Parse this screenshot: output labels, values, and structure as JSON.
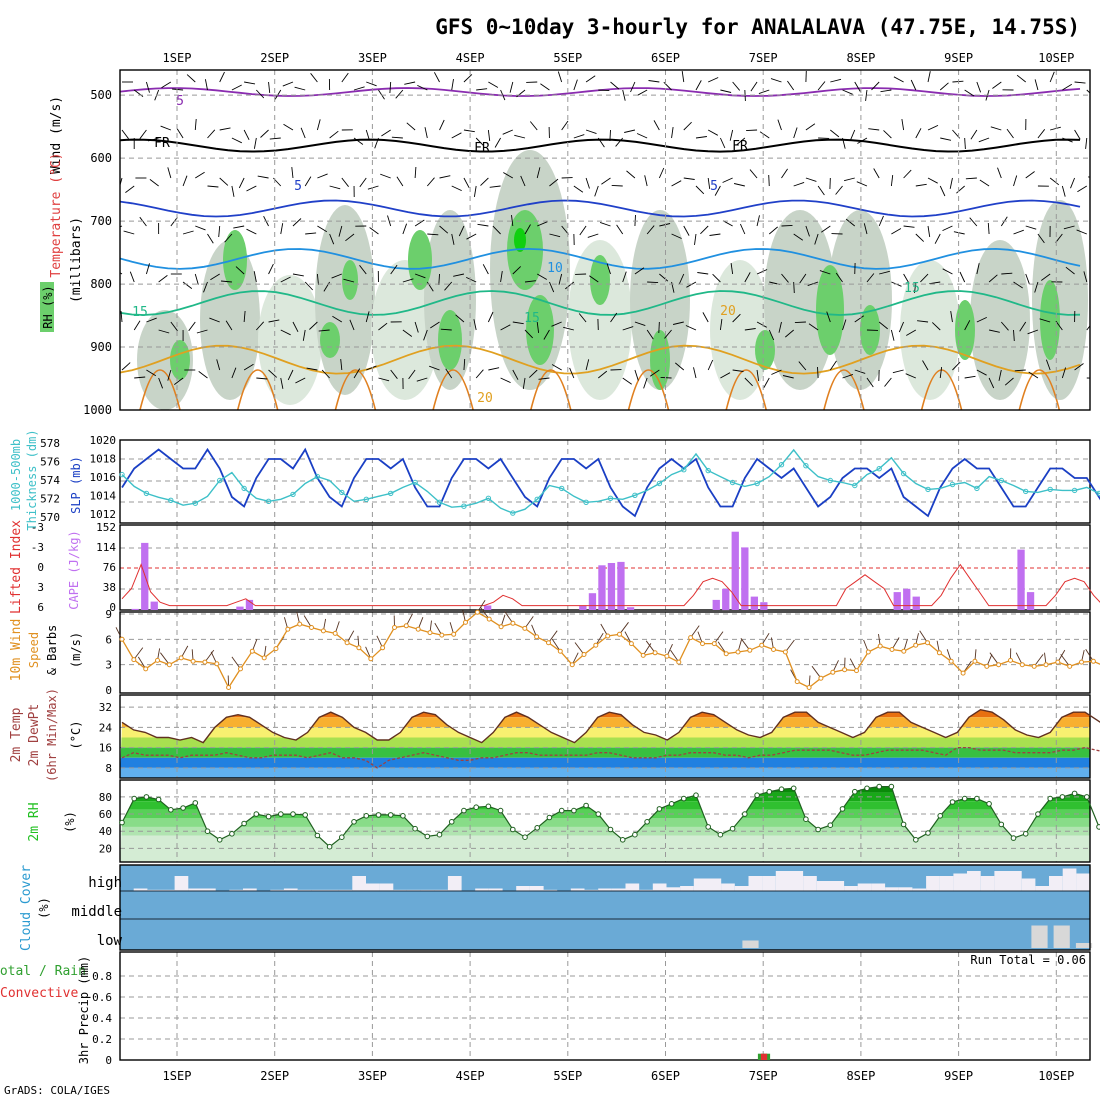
{
  "title": "GFS 0~10day 3-hourly for ANALALAVA (47.75E, 14.75S)",
  "footer": "GrADS: COLA/IGES",
  "run_total": "Run Total = 0.06",
  "colors": {
    "rh_green": "#6ccf6c",
    "rh_dark": "#c8d4c8",
    "slp": "#1a3fc4",
    "thickness": "#3ec0c8",
    "cape": "#c070f0",
    "lifted_index": "#e03030",
    "wind": "#e09020",
    "cloud_bg": "#6aaad6",
    "cloud_fill": "#f2eef6",
    "rh2m": "#22c022",
    "dewpt": "#a04040"
  },
  "labels": {
    "p1": [
      "Wind (m/s)",
      "Temperature (°C)",
      "RH (%)",
      "(millibars)"
    ],
    "p2": [
      "1000-500mb",
      "Thickness (dm)",
      "SLP (mb)"
    ],
    "p3": [
      "Lifted Index",
      "CAPE (J/kg)"
    ],
    "p4": [
      "10m Wind",
      "Speed",
      "& Barbs",
      "(m/s)"
    ],
    "p5": [
      "2m Temp",
      "2m DewPt",
      "(6hr Min/Max)",
      "(°C)"
    ],
    "p6": [
      "2m RH",
      "(%)"
    ],
    "p7": [
      "Cloud Cover",
      "(%)"
    ],
    "p8": [
      "Total / Rain",
      "Convective",
      "3hr Precip (mm)"
    ]
  },
  "contour_labels": [
    "5",
    "FR",
    "FR",
    "FR",
    "5",
    "5",
    "10",
    "15",
    "15",
    "15",
    "20",
    "20"
  ],
  "chart_data": {
    "type": "line",
    "dates": [
      "1SEP",
      "2SEP",
      "3SEP",
      "4SEP",
      "5SEP",
      "6SEP",
      "7SEP",
      "8SEP",
      "9SEP",
      "10SEP"
    ],
    "steps_per_day": 8,
    "panels": [
      {
        "name": "upper_air",
        "yticks": [
          "500",
          "600",
          "700",
          "800",
          "900",
          "1000"
        ],
        "ylim": [
          1000,
          460
        ],
        "isotherms": [
          {
            "label": "-5",
            "level": 495
          },
          {
            "label": "FR",
            "level": 580
          },
          {
            "label": "5",
            "level": 680
          },
          {
            "label": "10",
            "level": 760
          },
          {
            "label": "15",
            "level": 830
          },
          {
            "label": "20",
            "level": 920
          }
        ]
      },
      {
        "name": "slp_thickness",
        "yticks_left": [
          "578",
          "576",
          "574",
          "572",
          "570"
        ],
        "yticks_right": [
          "1020",
          "1018",
          "1016",
          "1014",
          "1012"
        ],
        "slp_mb": [
          1015,
          1017,
          1018,
          1019,
          1018,
          1017,
          1017,
          1019,
          1017,
          1014,
          1013,
          1016,
          1018,
          1018,
          1017,
          1019,
          1016,
          1014,
          1013,
          1016,
          1018,
          1018,
          1017,
          1018,
          1015,
          1013,
          1013,
          1016,
          1018,
          1018,
          1017,
          1018,
          1016,
          1014,
          1013,
          1016,
          1018,
          1018,
          1017,
          1018,
          1015,
          1013,
          1012,
          1015,
          1017,
          1018,
          1017,
          1018,
          1015,
          1013,
          1013,
          1016,
          1018,
          1017,
          1016,
          1017,
          1015,
          1013,
          1014,
          1016,
          1017,
          1017,
          1016,
          1017,
          1014,
          1013,
          1012,
          1015,
          1017,
          1018,
          1017,
          1017,
          1015,
          1013,
          1013,
          1015,
          1017,
          1017,
          1016,
          1016,
          1014,
          1012,
          1012,
          1015,
          1017,
          1017,
          1017,
          1018,
          1018
        ],
        "thickness_dm": [
          574.8,
          573.6,
          572.9,
          572.5,
          572.2,
          571.7,
          571.9,
          572.6,
          574.2,
          575.0,
          573.4,
          572.4,
          572.1,
          572.3,
          572.8,
          573.9,
          574.6,
          574.2,
          573.0,
          572.1,
          572.3,
          572.6,
          572.9,
          573.5,
          574.0,
          573.1,
          572.0,
          571.5,
          571.6,
          571.9,
          572.4,
          571.4,
          570.9,
          571.3,
          572.3,
          573.7,
          573.4,
          572.6,
          572.0,
          572.1,
          572.4,
          572.3,
          572.7,
          573.2,
          573.9,
          574.8,
          575.3,
          576.9,
          575.2,
          574.6,
          574.0,
          573.6,
          573.9,
          574.6,
          575.8,
          577.3,
          575.7,
          574.6,
          574.2,
          574.0,
          573.7,
          574.8,
          575.4,
          576.5,
          574.9,
          573.9,
          573.3,
          573.4,
          573.8,
          574.0,
          573.4,
          574.6,
          574.2,
          573.7,
          573.1,
          573.0,
          573.3,
          573.2,
          573.2,
          573.5,
          572.9,
          572.8,
          572.6,
          572.9,
          573.3,
          572.5,
          572.1,
          573.1,
          573.6
        ]
      },
      {
        "name": "cape_li",
        "yticks_left": [
          "-3",
          "-3",
          "0",
          "3",
          "6"
        ],
        "yticks_right": [
          "152",
          "114",
          "76",
          "38",
          "0"
        ],
        "cape": [
          0,
          2,
          120,
          15,
          0,
          0,
          0,
          0,
          0,
          0,
          0,
          0,
          6,
          18,
          0,
          0,
          0,
          0,
          0,
          0,
          0,
          0,
          0,
          0,
          0,
          0,
          0,
          0,
          0,
          0,
          0,
          0,
          0,
          0,
          0,
          0,
          0,
          0,
          8,
          0,
          0,
          0,
          0,
          0,
          0,
          0,
          0,
          0,
          8,
          30,
          80,
          84,
          86,
          5,
          0,
          0,
          0,
          0,
          0,
          0,
          0,
          0,
          18,
          38,
          140,
          112,
          24,
          14,
          0,
          0,
          0,
          0,
          0,
          0,
          0,
          0,
          0,
          0,
          0,
          0,
          0,
          32,
          38,
          24,
          0,
          0,
          0,
          0,
          0,
          0,
          0,
          0,
          0,
          0,
          108,
          32,
          0,
          0,
          0,
          0,
          0,
          0,
          0,
          0,
          0,
          0,
          0,
          12,
          74,
          74,
          0,
          0,
          0,
          0,
          0,
          0,
          0,
          0,
          0,
          0
        ],
        "lifted_index": [
          4.5,
          3.0,
          -0.5,
          3.5,
          5.0,
          5.5,
          5.5,
          5.5,
          5.5,
          5.5,
          5.5,
          5.5,
          5.0,
          4.5,
          5.5,
          5.5,
          5.5,
          5.5,
          5.5,
          5.5,
          5.5,
          5.5,
          5.5,
          5.5,
          5.5,
          5.5,
          5.5,
          5.5,
          5.5,
          5.5,
          5.5,
          5.5,
          5.5,
          5.5,
          5.5,
          5.5,
          5.5,
          5.5,
          5.5,
          5.0,
          4.0,
          4.5,
          5.5,
          5.5,
          5.5,
          5.5,
          5.5,
          5.5,
          5.5,
          5.5,
          5.5,
          5.5,
          5.5,
          5.5,
          5.5,
          5.5,
          5.5,
          5.5,
          5.5,
          5.5,
          4.0,
          2.0,
          1.5,
          2.0,
          3.5,
          5.5,
          5.5,
          5.5,
          5.5,
          5.5,
          5.5,
          5.5,
          5.5,
          5.5,
          5.5,
          5.5,
          3.0,
          2.0,
          1.0,
          2.0,
          3.0,
          5.5,
          5.5,
          5.5,
          5.5,
          5.5,
          4.0,
          1.5,
          -0.5,
          1.5,
          3.5,
          5.5,
          5.5,
          5.5,
          5.5,
          5.5,
          5.5,
          5.5,
          4.0,
          2.0,
          1.5,
          2.0,
          4.0,
          5.5,
          5.5,
          5.5,
          5.5,
          5.5,
          5.5,
          5.5,
          5.5,
          5.5,
          5.5,
          5.5,
          5.5
        ]
      },
      {
        "name": "wind10m",
        "yticks": [
          "9",
          "6",
          "3",
          "0"
        ],
        "speed": [
          6.0,
          3.6,
          2.5,
          3.5,
          3.0,
          3.8,
          3.4,
          3.3,
          3.1,
          0.3,
          2.5,
          4.6,
          3.8,
          4.9,
          7.2,
          7.8,
          7.4,
          7.0,
          6.7,
          5.6,
          5.0,
          3.7,
          5.0,
          7.4,
          7.6,
          7.2,
          6.8,
          6.5,
          6.6,
          8.0,
          9.2,
          8.4,
          7.5,
          7.9,
          7.3,
          6.3,
          5.6,
          4.6,
          3.0,
          4.2,
          5.3,
          6.4,
          6.6,
          5.5,
          4.1,
          4.4,
          4.0,
          3.3,
          6.2,
          5.5,
          5.5,
          4.3,
          4.5,
          4.7,
          5.3,
          4.8,
          4.5,
          1.0,
          0.3,
          1.4,
          2.1,
          2.4,
          2.3,
          4.5,
          5.2,
          4.8,
          4.6,
          5.3,
          5.6,
          4.4,
          3.4,
          2.0,
          3.4,
          2.8,
          3.0,
          3.5,
          3.0,
          2.8,
          3.0,
          3.3,
          2.8,
          3.3,
          3.4,
          2.8,
          2.4,
          2.0,
          2.5,
          3.5,
          2.7,
          2.5,
          3.8,
          3.7,
          2.0,
          5.0,
          6.0,
          7.5,
          6.8,
          4.5,
          5.0,
          5.3,
          5.2,
          4.2
        ]
      },
      {
        "name": "temp2m",
        "yticks": [
          "32",
          "24",
          "16",
          "8"
        ],
        "temp": [
          26,
          23,
          22,
          20,
          20,
          19,
          20,
          18,
          24,
          28,
          29,
          28,
          25,
          22,
          20,
          19,
          22,
          28,
          30,
          28,
          24,
          22,
          19,
          19,
          22,
          28,
          30,
          29,
          25,
          22,
          20,
          18,
          22,
          28,
          30,
          28,
          25,
          22,
          20,
          18,
          22,
          28,
          30,
          29,
          25,
          22,
          21,
          19,
          22,
          28,
          30,
          29,
          26,
          23,
          21,
          20,
          22,
          28,
          30,
          30,
          26,
          24,
          22,
          20,
          22,
          28,
          30,
          30,
          26,
          24,
          22,
          20,
          22,
          28,
          31,
          30,
          27,
          23,
          21,
          20,
          22,
          28,
          30,
          30,
          27,
          24,
          22,
          19,
          24,
          30,
          33,
          29,
          25,
          22,
          20,
          19,
          26
        ],
        "dewpt": [
          12,
          14,
          13,
          13,
          13,
          12,
          13,
          13,
          13,
          14,
          13,
          12,
          12,
          13,
          13,
          13,
          12,
          13,
          14,
          12,
          12,
          11,
          8,
          11,
          12,
          13,
          14,
          13,
          12,
          11,
          11,
          12,
          12,
          13,
          14,
          14,
          13,
          13,
          13,
          13,
          13,
          14,
          14,
          13,
          12,
          12,
          12,
          13,
          13,
          14,
          14,
          14,
          13,
          13,
          12,
          13,
          13,
          14,
          15,
          15,
          15,
          15,
          14,
          13,
          13,
          14,
          15,
          15,
          15,
          15,
          14,
          13,
          16,
          16,
          15,
          15,
          15,
          14,
          14,
          14,
          14,
          15,
          15,
          16,
          15,
          14,
          12,
          9,
          5,
          8,
          10,
          12,
          14,
          13,
          10,
          9,
          10
        ]
      },
      {
        "name": "rh2m",
        "yticks": [
          "80",
          "60",
          "40",
          "20"
        ],
        "rh": [
          50,
          78,
          80,
          77,
          65,
          67,
          73,
          40,
          30,
          37,
          49,
          60,
          57,
          60,
          60,
          59,
          35,
          22,
          33,
          51,
          58,
          59,
          59,
          58,
          43,
          34,
          36,
          51,
          64,
          68,
          69,
          64,
          42,
          33,
          44,
          56,
          64,
          64,
          70,
          60,
          42,
          30,
          36,
          51,
          66,
          72,
          78,
          82,
          45,
          36,
          43,
          60,
          82,
          86,
          89,
          90,
          54,
          42,
          47,
          66,
          86,
          90,
          92,
          92,
          48,
          30,
          38,
          58,
          74,
          78,
          78,
          72,
          48,
          32,
          37,
          60,
          78,
          80,
          84,
          80,
          45,
          18,
          25,
          44,
          62,
          67,
          36
        ]
      },
      {
        "name": "cloud_cover",
        "levels": [
          "high",
          "middle",
          "low"
        ],
        "high": [
          0,
          10,
          5,
          5,
          60,
          10,
          10,
          0,
          5,
          10,
          0,
          5,
          10,
          5,
          5,
          5,
          5,
          60,
          30,
          30,
          5,
          5,
          5,
          5,
          60,
          0,
          10,
          10,
          0,
          20,
          20,
          5,
          0,
          10,
          5,
          10,
          10,
          30,
          5,
          30,
          15,
          20,
          50,
          50,
          30,
          20,
          60,
          60,
          80,
          80,
          60,
          40,
          40,
          20,
          30,
          30,
          15,
          15,
          10,
          60,
          60,
          70,
          80,
          60,
          80,
          80,
          50,
          20,
          60,
          90,
          70
        ],
        "middle": [],
        "low": [
          0,
          0,
          0,
          0,
          0,
          0,
          0,
          0,
          0,
          0,
          0,
          0,
          0,
          0,
          0,
          0,
          0,
          0,
          0,
          0,
          0,
          0,
          0,
          0,
          0,
          0,
          0,
          0,
          30,
          0,
          0,
          0,
          0,
          0,
          0,
          0,
          0,
          0,
          0,
          0,
          0,
          90,
          90,
          20,
          0
        ]
      },
      {
        "name": "precip",
        "yticks": [
          "0.8",
          "0.6",
          "0.4",
          "0.2",
          "0"
        ],
        "ylim": [
          0,
          1
        ],
        "total": 0.06,
        "precip_index": 41,
        "precip_value": 0.06
      }
    ]
  }
}
